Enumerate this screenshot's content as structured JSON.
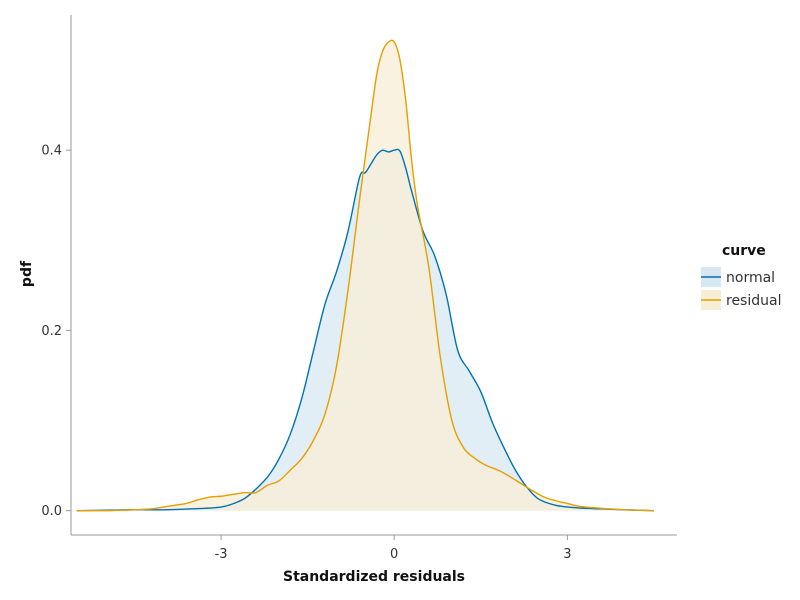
{
  "chart_data": {
    "type": "area",
    "xlabel": "Standardized residuals",
    "ylabel": "pdf",
    "xlim": [
      -5.6,
      4.9
    ],
    "ylim": [
      -0.027,
      0.55
    ],
    "x_ticks": [
      -3,
      0,
      3
    ],
    "x_tick_labels": [
      "-3",
      "0",
      "3"
    ],
    "y_ticks": [
      0.0,
      0.2,
      0.4
    ],
    "y_tick_labels": [
      "0.0",
      "0.2",
      "0.4"
    ],
    "grid": false,
    "legend": {
      "title": "curve",
      "position": "right"
    },
    "series": [
      {
        "name": "normal",
        "color": "#0072B2",
        "fill": "#D7E8F2",
        "x": [
          -5.5,
          -4.5,
          -4.0,
          -3.5,
          -3.0,
          -2.7,
          -2.5,
          -2.2,
          -2.0,
          -1.8,
          -1.6,
          -1.4,
          -1.2,
          -1.0,
          -0.8,
          -0.6,
          -0.5,
          -0.4,
          -0.3,
          -0.2,
          -0.1,
          0.0,
          0.1,
          0.2,
          0.3,
          0.5,
          0.7,
          0.9,
          1.1,
          1.3,
          1.5,
          1.7,
          1.9,
          2.1,
          2.3,
          2.5,
          2.8,
          3.2,
          3.6,
          4.0,
          4.5
        ],
        "values": [
          0.0,
          0.001,
          0.001,
          0.002,
          0.004,
          0.01,
          0.018,
          0.037,
          0.057,
          0.085,
          0.125,
          0.177,
          0.229,
          0.265,
          0.31,
          0.37,
          0.375,
          0.385,
          0.395,
          0.4,
          0.398,
          0.4,
          0.399,
          0.38,
          0.355,
          0.31,
          0.283,
          0.24,
          0.178,
          0.155,
          0.132,
          0.098,
          0.07,
          0.045,
          0.026,
          0.013,
          0.006,
          0.003,
          0.002,
          0.001,
          0.0
        ]
      },
      {
        "name": "residual",
        "color": "#E69F00",
        "fill": "#F8EDD5",
        "x": [
          -5.5,
          -5.0,
          -4.5,
          -4.2,
          -4.0,
          -3.8,
          -3.6,
          -3.4,
          -3.2,
          -3.0,
          -2.8,
          -2.6,
          -2.4,
          -2.2,
          -2.0,
          -1.8,
          -1.6,
          -1.4,
          -1.2,
          -1.0,
          -0.8,
          -0.6,
          -0.4,
          -0.3,
          -0.2,
          -0.1,
          0.0,
          0.1,
          0.2,
          0.3,
          0.4,
          0.6,
          0.8,
          1.0,
          1.2,
          1.4,
          1.6,
          1.8,
          2.0,
          2.2,
          2.4,
          2.6,
          2.8,
          3.0,
          3.2,
          3.5,
          4.0,
          4.5
        ],
        "values": [
          0.0,
          0.0,
          0.001,
          0.002,
          0.004,
          0.006,
          0.008,
          0.012,
          0.015,
          0.016,
          0.018,
          0.02,
          0.02,
          0.028,
          0.033,
          0.045,
          0.058,
          0.078,
          0.107,
          0.16,
          0.245,
          0.345,
          0.44,
          0.485,
          0.51,
          0.52,
          0.52,
          0.5,
          0.455,
          0.39,
          0.34,
          0.27,
          0.17,
          0.1,
          0.07,
          0.058,
          0.05,
          0.045,
          0.038,
          0.03,
          0.022,
          0.015,
          0.011,
          0.008,
          0.005,
          0.003,
          0.001,
          0.0
        ]
      }
    ]
  }
}
